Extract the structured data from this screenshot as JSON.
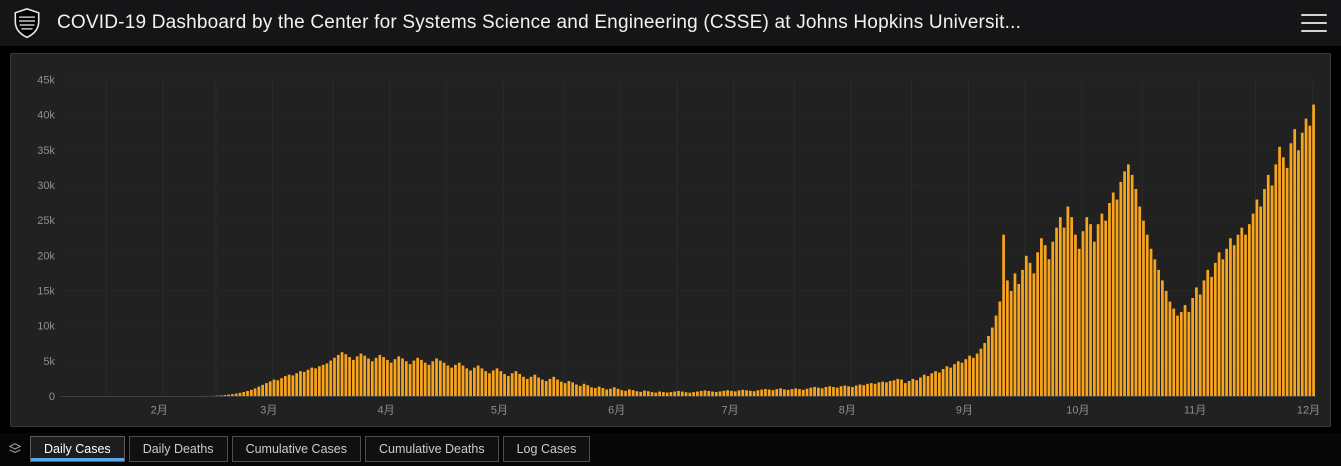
{
  "header": {
    "title": "COVID-19 Dashboard by the Center for Systems Science and Engineering (CSSE) at Johns Hopkins Universit...",
    "logo": "jhu-shield-logo",
    "menu_icon": "hamburger-menu-icon"
  },
  "tabs": [
    {
      "label": "Daily Cases",
      "active": true
    },
    {
      "label": "Daily Deaths",
      "active": false
    },
    {
      "label": "Cumulative Cases",
      "active": false
    },
    {
      "label": "Cumulative Deaths",
      "active": false
    },
    {
      "label": "Log Cases",
      "active": false
    }
  ],
  "colors": {
    "bar": "#F8A41D",
    "accent": "#56A9E8",
    "header_bg": "#151517",
    "card_bg": "#212121",
    "card_border": "#3a3a3a",
    "page_bg": "#000000",
    "grid_h": "#262626",
    "grid_v": "#2b2b2b",
    "baseline": "#404040",
    "axis_text": "#8f8f8f"
  },
  "chart_data": {
    "type": "bar",
    "title": "Daily Cases",
    "xlabel": "",
    "ylabel": "",
    "ylim": [
      0,
      45000
    ],
    "grid": true,
    "y_tick_labels": [
      "0",
      "5k",
      "10k",
      "15k",
      "20k",
      "25k",
      "30k",
      "35k",
      "40k",
      "45k"
    ],
    "x_tick_labels": [
      "2月",
      "3月",
      "4月",
      "5月",
      "6月",
      "7月",
      "8月",
      "9月",
      "10月",
      "11月",
      "12月"
    ],
    "x_tick_indices": [
      26,
      55,
      86,
      116,
      147,
      177,
      208,
      239,
      269,
      300,
      330
    ],
    "month_start_indices": [
      12,
      41,
      72,
      102,
      133,
      163,
      194,
      225,
      255,
      286,
      316
    ],
    "values": [
      0,
      0,
      0,
      0,
      0,
      0,
      0,
      0,
      0,
      0,
      0,
      0,
      0,
      0,
      0,
      0,
      0,
      0,
      0,
      0,
      0,
      0,
      0,
      0,
      0,
      0,
      0,
      0,
      0,
      0,
      0,
      0,
      0,
      0,
      30,
      40,
      60,
      50,
      80,
      60,
      90,
      120,
      150,
      200,
      260,
      330,
      420,
      520,
      640,
      780,
      950,
      1150,
      1400,
      1650,
      1900,
      2150,
      2400,
      2300,
      2600,
      2900,
      3100,
      3000,
      3300,
      3600,
      3500,
      3800,
      4100,
      4000,
      4300,
      4500,
      4700,
      5100,
      5500,
      5900,
      6300,
      6000,
      5600,
      5200,
      5700,
      6100,
      5800,
      5400,
      5000,
      5500,
      5900,
      5600,
      5200,
      4800,
      5300,
      5700,
      5400,
      5000,
      4600,
      5100,
      5500,
      5200,
      4800,
      4500,
      5000,
      5400,
      5100,
      4800,
      4400,
      4100,
      4500,
      4800,
      4400,
      4000,
      3700,
      4100,
      4400,
      4000,
      3600,
      3300,
      3700,
      4000,
      3600,
      3200,
      2900,
      3300,
      3600,
      3200,
      2800,
      2500,
      2800,
      3100,
      2700,
      2400,
      2200,
      2500,
      2800,
      2400,
      2100,
      1900,
      2200,
      2000,
      1700,
      1500,
      1800,
      1600,
      1300,
      1200,
      1400,
      1200,
      1000,
      1100,
      1300,
      1100,
      900,
      800,
      1000,
      900,
      750,
      650,
      850,
      750,
      620,
      550,
      700,
      620,
      560,
      620,
      700,
      780,
      700,
      600,
      540,
      620,
      700,
      780,
      860,
      780,
      700,
      640,
      720,
      800,
      880,
      800,
      720,
      860,
      950,
      880,
      800,
      740,
      880,
      980,
      1060,
      980,
      900,
      1050,
      1150,
      1000,
      950,
      1050,
      1150,
      1050,
      950,
      1100,
      1250,
      1350,
      1250,
      1150,
      1350,
      1450,
      1350,
      1250,
      1450,
      1550,
      1450,
      1350,
      1550,
      1700,
      1600,
      1800,
      1900,
      1800,
      2000,
      2100,
      2000,
      2200,
      2300,
      2500,
      2400,
      1900,
      2200,
      2500,
      2300,
      2700,
      3100,
      2900,
      3300,
      3600,
      3400,
      3900,
      4300,
      4100,
      4600,
      5000,
      4800,
      5300,
      5800,
      5500,
      6100,
      6800,
      7600,
      8600,
      9800,
      11500,
      13500,
      23000,
      16500,
      15000,
      17500,
      16000,
      18000,
      20000,
      19000,
      17500,
      20500,
      22500,
      21500,
      19500,
      22000,
      24000,
      25500,
      24000,
      27000,
      25500,
      23000,
      21000,
      23500,
      25500,
      24500,
      22000,
      24500,
      26000,
      25000,
      27500,
      29000,
      28000,
      30500,
      32000,
      33000,
      31500,
      29500,
      27000,
      25000,
      23000,
      21000,
      19500,
      18000,
      16500,
      15000,
      13500,
      12500,
      11500,
      12000,
      13000,
      12000,
      14000,
      15500,
      14500,
      16500,
      18000,
      17000,
      19000,
      20500,
      19500,
      21000,
      22500,
      21500,
      23000,
      24000,
      23000,
      24500,
      26000,
      28000,
      27000,
      29500,
      31500,
      30000,
      33000,
      35500,
      34000,
      32500,
      36000,
      38000,
      35000,
      37500,
      39500,
      38500,
      41500
    ]
  }
}
